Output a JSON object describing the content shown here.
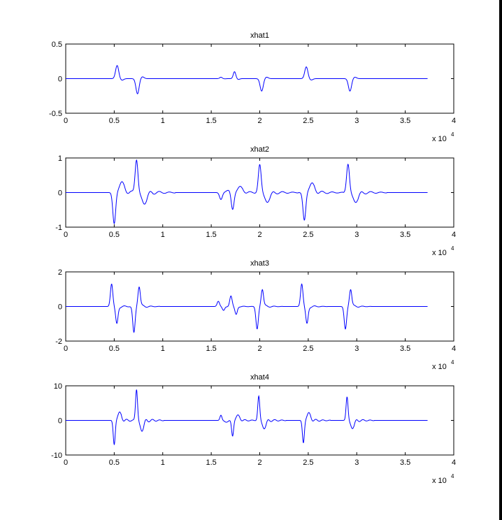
{
  "figure": {
    "background": "#ffffff",
    "line_color": "#0000ff",
    "axis_color": "#000000"
  },
  "chart_data": [
    {
      "type": "line",
      "title": "xhat1",
      "x_exponent_label": "x 10",
      "x_exponent_power": "4",
      "xlim": [
        0,
        4
      ],
      "ylim": [
        -0.5,
        0.5
      ],
      "xticks": [
        0,
        0.5,
        1,
        1.5,
        2,
        2.5,
        3,
        3.5,
        4
      ],
      "xtick_labels": [
        "0",
        "0.5",
        "1",
        "1.5",
        "2",
        "2.5",
        "3",
        "3.5",
        "4"
      ],
      "yticks": [
        -0.5,
        0,
        0.5
      ],
      "ytick_labels": [
        "-0.5",
        "0",
        "0.5"
      ],
      "x_end": 3.73,
      "events": [
        {
          "x": 0.53,
          "amp": 0.19,
          "shape": "bump",
          "w": 0.025
        },
        {
          "x": 0.74,
          "amp": -0.22,
          "shape": "bump",
          "w": 0.025
        },
        {
          "x": 1.6,
          "amp": 0.02,
          "shape": "bump",
          "w": 0.02
        },
        {
          "x": 1.74,
          "amp": 0.1,
          "shape": "bump",
          "w": 0.02
        },
        {
          "x": 2.02,
          "amp": -0.18,
          "shape": "bump",
          "w": 0.025
        },
        {
          "x": 2.48,
          "amp": 0.17,
          "shape": "bump",
          "w": 0.025
        },
        {
          "x": 2.93,
          "amp": -0.18,
          "shape": "bump",
          "w": 0.025
        }
      ]
    },
    {
      "type": "line",
      "title": "xhat2",
      "x_exponent_label": "x 10",
      "x_exponent_power": "4",
      "xlim": [
        0,
        4
      ],
      "ylim": [
        -1,
        1
      ],
      "xticks": [
        0,
        0.5,
        1,
        1.5,
        2,
        2.5,
        3,
        3.5,
        4
      ],
      "xtick_labels": [
        "0",
        "0.5",
        "1",
        "1.5",
        "2",
        "2.5",
        "3",
        "3.5",
        "4"
      ],
      "yticks": [
        -1,
        0,
        1
      ],
      "ytick_labels": [
        "-1",
        "0",
        "1"
      ],
      "x_end": 3.73,
      "events": [
        {
          "x": 0.5,
          "amp": -0.9,
          "shape": "spike",
          "w": 0.05
        },
        {
          "x": 0.73,
          "amp": 0.97,
          "shape": "spike",
          "w": 0.05
        },
        {
          "x": 1.6,
          "amp": -0.2,
          "shape": "spike",
          "w": 0.05
        },
        {
          "x": 1.72,
          "amp": -0.5,
          "shape": "spike",
          "w": 0.05
        },
        {
          "x": 2.0,
          "amp": 0.8,
          "shape": "spike",
          "w": 0.05
        },
        {
          "x": 2.46,
          "amp": -0.8,
          "shape": "spike",
          "w": 0.05
        },
        {
          "x": 2.91,
          "amp": 0.82,
          "shape": "spike",
          "w": 0.05
        }
      ]
    },
    {
      "type": "line",
      "title": "xhat3",
      "x_exponent_label": "x 10",
      "x_exponent_power": "4",
      "xlim": [
        0,
        4
      ],
      "ylim": [
        -2,
        2
      ],
      "xticks": [
        0,
        0.5,
        1,
        1.5,
        2,
        2.5,
        3,
        3.5,
        4
      ],
      "xtick_labels": [
        "0",
        "0.5",
        "1",
        "1.5",
        "2",
        "2.5",
        "3",
        "3.5",
        "4"
      ],
      "yticks": [
        -2,
        0,
        2
      ],
      "ytick_labels": [
        "-2",
        "0",
        "2"
      ],
      "x_end": 3.73,
      "events": [
        {
          "x": 0.5,
          "amp": 1.3,
          "shape": "biphasic",
          "w": 0.03
        },
        {
          "x": 0.73,
          "amp": -1.5,
          "shape": "biphasic",
          "w": 0.03
        },
        {
          "x": 1.6,
          "amp": 0.3,
          "shape": "biphasic",
          "w": 0.03
        },
        {
          "x": 1.73,
          "amp": 0.6,
          "shape": "biphasic",
          "w": 0.03
        },
        {
          "x": 2.0,
          "amp": -1.3,
          "shape": "biphasic",
          "w": 0.03
        },
        {
          "x": 2.46,
          "amp": 1.3,
          "shape": "biphasic",
          "w": 0.03
        },
        {
          "x": 2.91,
          "amp": -1.3,
          "shape": "biphasic",
          "w": 0.03
        }
      ]
    },
    {
      "type": "line",
      "title": "xhat4",
      "x_exponent_label": "x 10",
      "x_exponent_power": "4",
      "xlim": [
        0,
        4
      ],
      "ylim": [
        -10,
        10
      ],
      "xticks": [
        0,
        0.5,
        1,
        1.5,
        2,
        2.5,
        3,
        3.5,
        4
      ],
      "xtick_labels": [
        "0",
        "0.5",
        "1",
        "1.5",
        "2",
        "2.5",
        "3",
        "3.5",
        "4"
      ],
      "yticks": [
        -10,
        0,
        10
      ],
      "ytick_labels": [
        "-10",
        "0",
        "10"
      ],
      "x_end": 3.73,
      "events": [
        {
          "x": 0.5,
          "amp": -7,
          "shape": "spike",
          "w": 0.035
        },
        {
          "x": 0.73,
          "amp": 9,
          "shape": "spike",
          "w": 0.035
        },
        {
          "x": 1.6,
          "amp": 1.5,
          "shape": "spike",
          "w": 0.035
        },
        {
          "x": 1.72,
          "amp": -4.5,
          "shape": "spike",
          "w": 0.035
        },
        {
          "x": 1.99,
          "amp": 7,
          "shape": "spike",
          "w": 0.035
        },
        {
          "x": 2.45,
          "amp": -6.5,
          "shape": "spike",
          "w": 0.035
        },
        {
          "x": 2.9,
          "amp": 6.8,
          "shape": "spike",
          "w": 0.035
        }
      ]
    }
  ]
}
